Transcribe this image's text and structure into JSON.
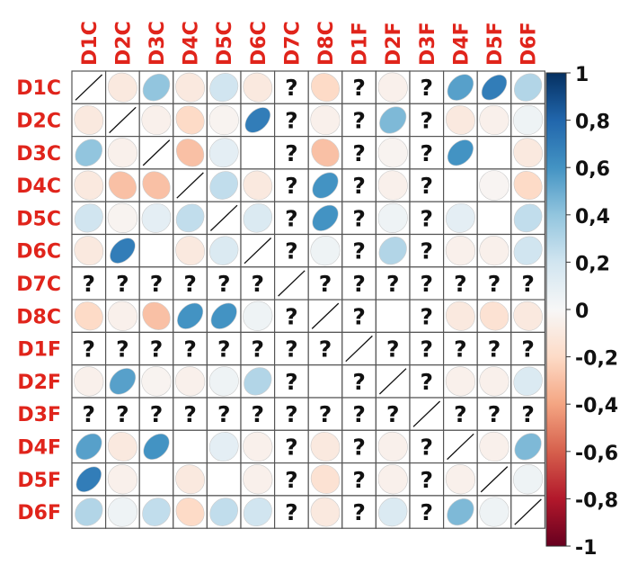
{
  "chart_data": {
    "type": "heatmap",
    "variables": [
      "D1C",
      "D2C",
      "D3C",
      "D4C",
      "D5C",
      "D6C",
      "D7C",
      "D8C",
      "D1F",
      "D2F",
      "D3F",
      "D4F",
      "D5F",
      "D6F"
    ],
    "values": [
      [
        1,
        -0.1,
        0.4,
        -0.1,
        0.2,
        -0.1,
        null,
        -0.2,
        null,
        -0.05,
        null,
        0.55,
        0.7,
        0.3
      ],
      [
        -0.1,
        1,
        -0.05,
        -0.2,
        -0.03,
        0.7,
        null,
        -0.05,
        null,
        0.45,
        null,
        -0.1,
        -0.05,
        0.05
      ],
      [
        0.4,
        -0.05,
        1,
        -0.3,
        0.1,
        0,
        null,
        -0.3,
        null,
        -0.03,
        null,
        0.6,
        0,
        -0.1
      ],
      [
        -0.1,
        -0.3,
        -0.3,
        1,
        0.25,
        -0.1,
        null,
        0.6,
        null,
        -0.05,
        null,
        0,
        -0.02,
        -0.2
      ],
      [
        0.2,
        -0.03,
        0.1,
        0.25,
        1,
        0.15,
        null,
        0.6,
        null,
        0.05,
        null,
        0.1,
        0,
        0.25
      ],
      [
        -0.1,
        0.7,
        0,
        -0.1,
        0.15,
        1,
        null,
        0.05,
        null,
        0.3,
        null,
        -0.05,
        -0.05,
        0.2
      ],
      [
        null,
        null,
        null,
        null,
        null,
        null,
        1,
        null,
        null,
        null,
        null,
        null,
        null,
        null
      ],
      [
        -0.2,
        -0.05,
        -0.3,
        0.6,
        0.6,
        0.05,
        null,
        1,
        null,
        0,
        null,
        -0.1,
        -0.15,
        -0.1
      ],
      [
        null,
        null,
        null,
        null,
        null,
        null,
        null,
        null,
        1,
        null,
        null,
        null,
        null,
        null
      ],
      [
        -0.05,
        0.55,
        -0.03,
        -0.05,
        0.05,
        0.3,
        null,
        0,
        null,
        1,
        null,
        -0.05,
        -0.05,
        0.15
      ],
      [
        null,
        null,
        null,
        null,
        null,
        null,
        null,
        null,
        null,
        null,
        1,
        null,
        null,
        null
      ],
      [
        0.55,
        -0.1,
        0.6,
        0,
        0.1,
        -0.05,
        null,
        -0.1,
        null,
        -0.05,
        null,
        1,
        -0.05,
        0.45
      ],
      [
        0.7,
        -0.05,
        0,
        -0.1,
        0,
        -0.05,
        null,
        -0.15,
        null,
        -0.05,
        null,
        -0.05,
        1,
        0.05
      ],
      [
        0.3,
        0.05,
        0.25,
        -0.2,
        0.25,
        0.2,
        null,
        -0.1,
        null,
        0.15,
        null,
        0.45,
        0.05,
        1
      ]
    ],
    "missing_symbol": "?",
    "colorbar": {
      "range": [
        -1,
        1
      ],
      "tick_labels": [
        "1",
        "0,8",
        "0,6",
        "0,4",
        "0,2",
        "0",
        "-0,2",
        "-0,4",
        "-0,6",
        "-0,8",
        "-1"
      ]
    },
    "colors": {
      "negative": "#67001f",
      "neutral": "#f7f7f7",
      "positive": "#053061",
      "label": "#e0241b",
      "grid": "#555555"
    }
  }
}
